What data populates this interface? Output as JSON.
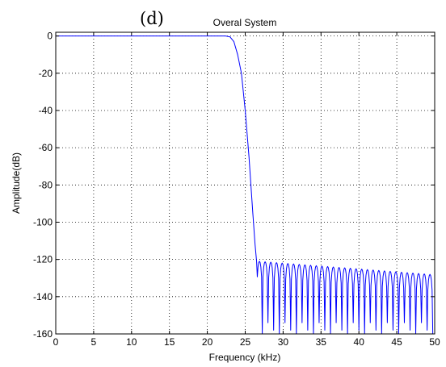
{
  "panel_label": "(d)",
  "chart_data": {
    "type": "line",
    "title": "Overal System",
    "xlabel": "Frequency (kHz)",
    "ylabel": "Amplitude(dB)",
    "xlim": [
      0,
      50
    ],
    "ylim": [
      -160,
      2
    ],
    "x_ticks": [
      0,
      5,
      10,
      15,
      20,
      25,
      30,
      35,
      40,
      45,
      50
    ],
    "y_ticks": [
      0,
      -20,
      -40,
      -60,
      -80,
      -100,
      -120,
      -140,
      -160
    ],
    "grid": true,
    "series": [
      {
        "color": "#0000ff",
        "passband": {
          "x": [
            0,
            22.4
          ],
          "y": 0
        },
        "transition": {
          "x": [
            22.4,
            23.0,
            23.5,
            24.0,
            24.5,
            25.0,
            25.5,
            26.0,
            26.3,
            26.5
          ],
          "y": [
            0,
            -0.5,
            -3,
            -10,
            -20,
            -40,
            -65,
            -95,
            -112,
            -121
          ]
        },
        "stopband": {
          "x_start": 26.5,
          "x_end": 50,
          "peak_level_start": -121,
          "peak_level_end": -128,
          "ripple_period_khz": 0.75,
          "null_level": -160
        }
      }
    ]
  }
}
